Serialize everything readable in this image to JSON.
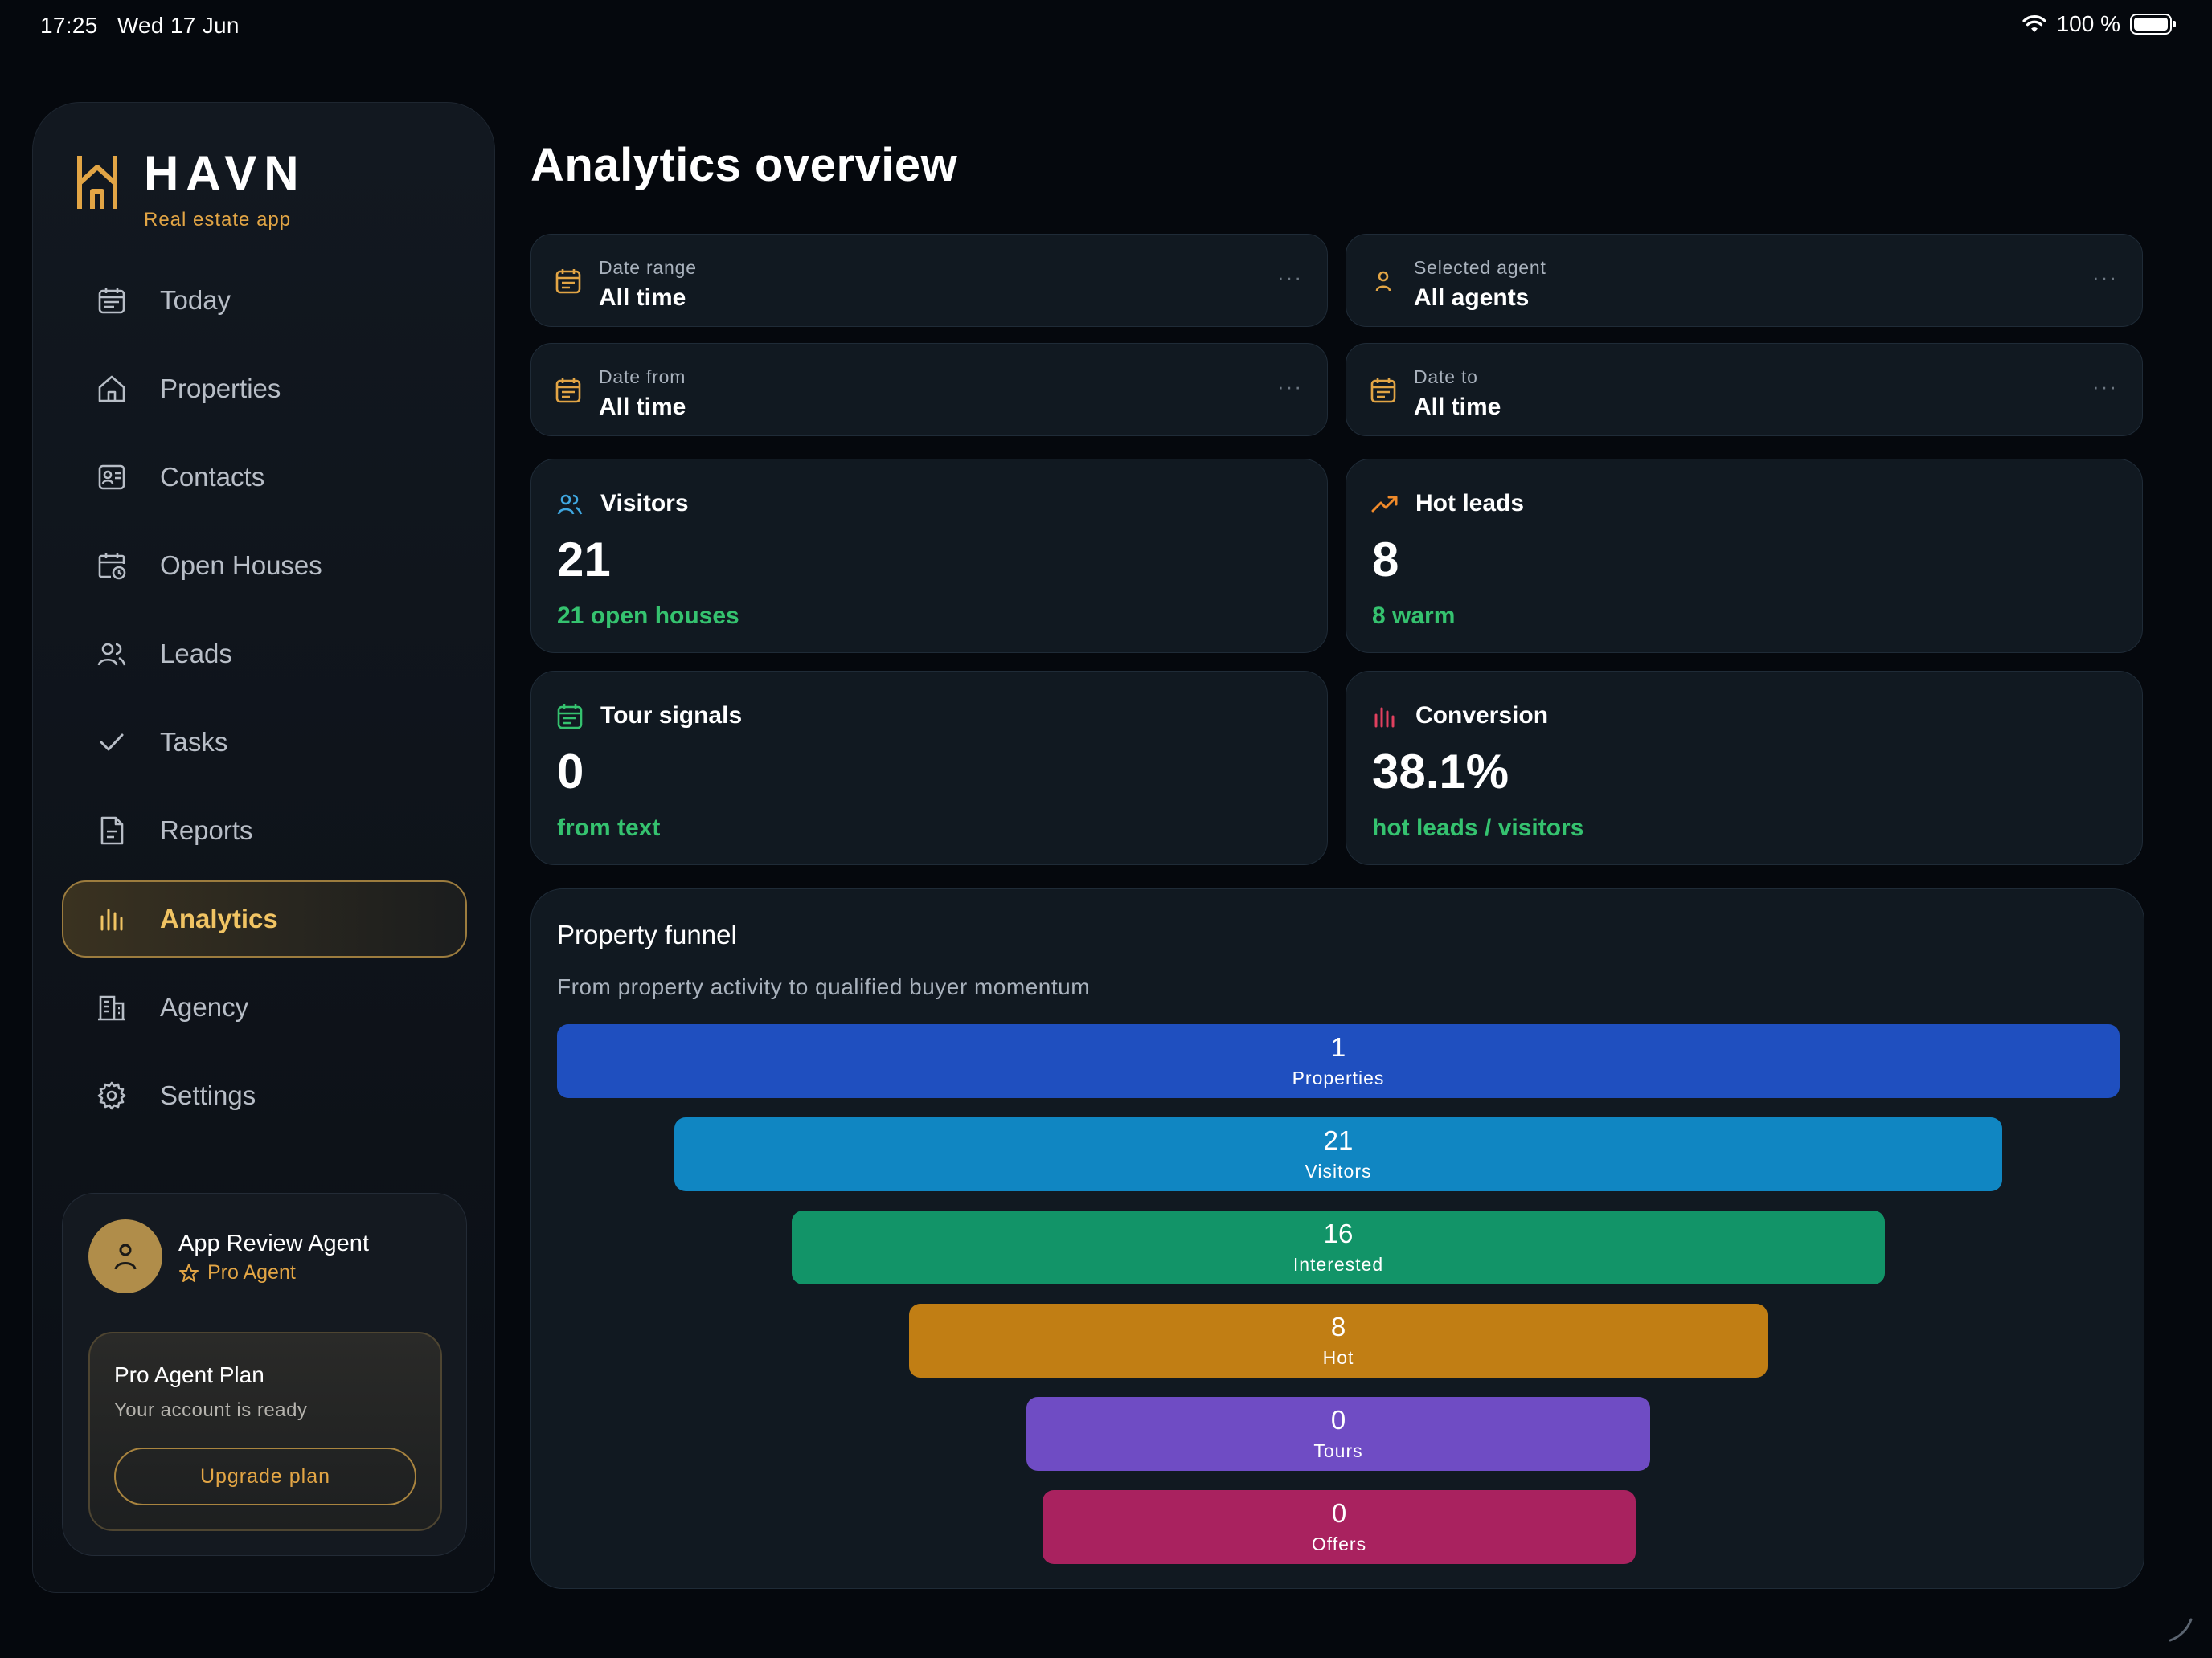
{
  "status_bar": {
    "time": "17:25",
    "date": "Wed 17 Jun",
    "battery": "100 %"
  },
  "brand": {
    "name": "HAVN",
    "tagline": "Real estate app",
    "accent": "#e2a545"
  },
  "nav": {
    "items": [
      {
        "label": "Today",
        "icon": "calendar-icon"
      },
      {
        "label": "Properties",
        "icon": "house-icon"
      },
      {
        "label": "Contacts",
        "icon": "contact-card-icon"
      },
      {
        "label": "Open Houses",
        "icon": "calendar-clock-icon"
      },
      {
        "label": "Leads",
        "icon": "users-icon"
      },
      {
        "label": "Tasks",
        "icon": "check-icon"
      },
      {
        "label": "Reports",
        "icon": "document-icon"
      },
      {
        "label": "Analytics",
        "icon": "bar-chart-icon",
        "active": true
      },
      {
        "label": "Agency",
        "icon": "building-icon"
      },
      {
        "label": "Settings",
        "icon": "gear-icon"
      }
    ]
  },
  "profile": {
    "name": "App Review Agent",
    "role": "Pro Agent",
    "plan_title": "Pro Agent Plan",
    "plan_subtitle": "Your account is ready",
    "upgrade_label": "Upgrade plan"
  },
  "page": {
    "title": "Analytics overview"
  },
  "filters": {
    "date_range": {
      "label": "Date range",
      "value": "All time",
      "more": "···"
    },
    "agent": {
      "label": "Selected agent",
      "value": "All agents",
      "more": "···"
    },
    "date_from": {
      "label": "Date from",
      "value": "All time",
      "more": "···"
    },
    "date_to": {
      "label": "Date to",
      "value": "All time",
      "more": "···"
    }
  },
  "stats": {
    "visitors": {
      "label": "Visitors",
      "value": "21",
      "sub": "21 open houses",
      "icon_color": "#3fa7e0"
    },
    "hot_leads": {
      "label": "Hot leads",
      "value": "8",
      "sub": "8 warm",
      "icon_color": "#f08a2a"
    },
    "tour_signals": {
      "label": "Tour signals",
      "value": "0",
      "sub": "from text",
      "icon_color": "#35c26f"
    },
    "conversion": {
      "label": "Conversion",
      "value": "38.1%",
      "sub": "hot leads / visitors",
      "icon_color": "#e0405e"
    }
  },
  "funnel": {
    "title": "Property funnel",
    "subtitle": "From property activity to qualified buyer momentum",
    "stages": [
      {
        "value": "1",
        "label": "Properties",
        "color": "#1f4fbf"
      },
      {
        "value": "21",
        "label": "Visitors",
        "color": "#1086c2"
      },
      {
        "value": "16",
        "label": "Interested",
        "color": "#129468"
      },
      {
        "value": "8",
        "label": "Hot",
        "color": "#c17e14"
      },
      {
        "value": "0",
        "label": "Tours",
        "color": "#6f4cc4"
      },
      {
        "value": "0",
        "label": "Offers",
        "color": "#a9225f"
      }
    ]
  }
}
